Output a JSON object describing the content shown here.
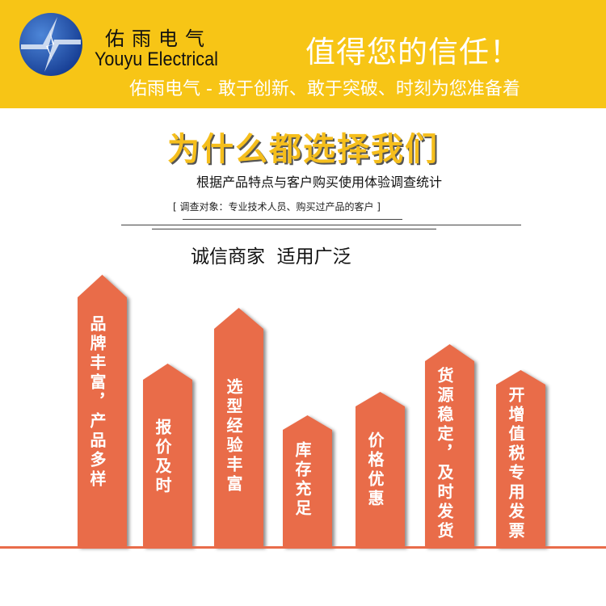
{
  "header": {
    "brand_cn": "佑雨电气",
    "brand_en": "Youyu Electrical",
    "slogan": "值得您的信任！",
    "tagline": "佑雨电气 - 敢于创新、敢于突破、时刻为您准备着",
    "colors": {
      "banner": "#F7C516",
      "logo": "#1F4FA8"
    }
  },
  "main": {
    "headline": "为什么都选择我们",
    "subtitle": "根据产品特点与客户购买使用体验调查统计",
    "note": "[ 调查对象：专业技术人员、购买过产品的客户 ]",
    "section_title": "诚信商家  适用广泛"
  },
  "columns": {
    "color": "#E96C4A",
    "items": [
      {
        "label": "品牌丰富，产品多样"
      },
      {
        "label": "报价及时"
      },
      {
        "label": "选型经验丰富"
      },
      {
        "label": "库存充足"
      },
      {
        "label": "价格优惠"
      },
      {
        "label": "货源稳定，及时发货"
      },
      {
        "label": "开增值税专用发票"
      }
    ]
  }
}
